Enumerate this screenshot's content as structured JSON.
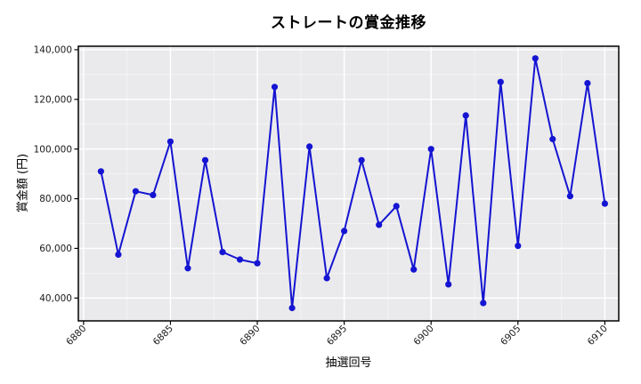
{
  "chart_data": {
    "type": "line",
    "title": "ストレートの賞金推移",
    "xlabel": "抽選回号",
    "ylabel": "賞金額 (円)",
    "x": [
      6881,
      6882,
      6883,
      6884,
      6885,
      6886,
      6887,
      6888,
      6889,
      6890,
      6891,
      6892,
      6893,
      6894,
      6895,
      6896,
      6897,
      6898,
      6899,
      6900,
      6901,
      6902,
      6903,
      6904,
      6905,
      6906,
      6907,
      6908,
      6909,
      6910
    ],
    "values": [
      91000,
      57500,
      83000,
      81500,
      103000,
      52000,
      95500,
      58500,
      55500,
      54000,
      125000,
      36000,
      101000,
      48000,
      67000,
      95500,
      69500,
      77000,
      51500,
      100000,
      45500,
      113500,
      38000,
      127000,
      61000,
      136500,
      104000,
      81000,
      126500,
      78000
    ],
    "xticks": [
      6880,
      6885,
      6890,
      6895,
      6900,
      6905,
      6910
    ],
    "yticks": [
      40000,
      60000,
      80000,
      100000,
      120000,
      140000
    ],
    "xticks_minor": [
      6882.5,
      6887.5,
      6892.5,
      6897.5,
      6902.5,
      6907.5
    ],
    "yticks_minor": [
      50000,
      70000,
      90000,
      110000,
      130000
    ],
    "xlim": [
      6879.7,
      6910.8
    ],
    "ylim": [
      30800,
      141400
    ],
    "grid": true,
    "legend": "none",
    "line_color": "#1414d2",
    "marker": "circle",
    "plot_bg": "#eaeaec",
    "grid_color": "#ffffff",
    "spine_color": "#000000",
    "tick_label_color": "#1a1a1a"
  }
}
